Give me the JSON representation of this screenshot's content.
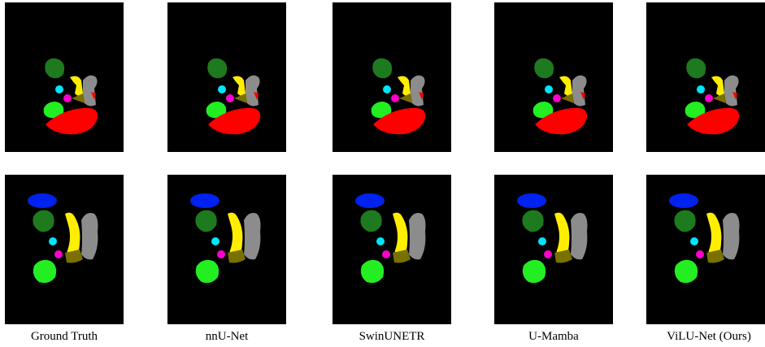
{
  "figure": {
    "columns": [
      "Ground Truth",
      "nnU-Net",
      "SwinUNETR",
      "U-Mamba",
      "ViLU-Net (Ours)"
    ]
  }
}
